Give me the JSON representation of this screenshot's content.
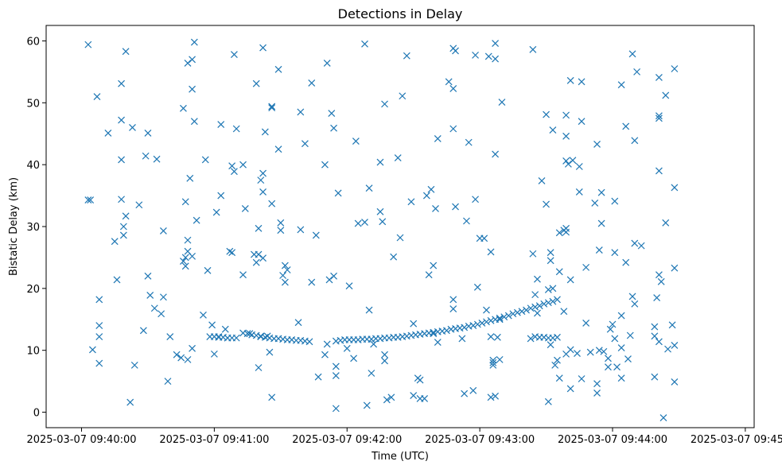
{
  "chart_data": {
    "type": "scatter",
    "title": "Detections in Delay",
    "xlabel": "Time (UTC)",
    "ylabel": "Bistatic Delay (km)",
    "marker": "x",
    "color": "#1f77b4",
    "x_unit": "seconds since 2025-03-07 09:40:00",
    "xlim": [
      -16,
      304
    ],
    "ylim": [
      -2.5,
      62.5
    ],
    "xticks": [
      0,
      60,
      120,
      180,
      240,
      300
    ],
    "xtick_labels": [
      "2025-03-07 09:40:00",
      "2025-03-07 09:41:00",
      "2025-03-07 09:42:00",
      "2025-03-07 09:43:00",
      "2025-03-07 09:44:00",
      "2025-03-07 09:45:00"
    ],
    "yticks": [
      0,
      10,
      20,
      30,
      40,
      50,
      60
    ],
    "ytick_labels": [
      "0",
      "10",
      "20",
      "30",
      "40",
      "50",
      "60"
    ],
    "grid": false,
    "track_points": [
      [
        58,
        12.2
      ],
      [
        60,
        12.2
      ],
      [
        62,
        12.1
      ],
      [
        64,
        12.1
      ],
      [
        66,
        12.0
      ],
      [
        68,
        12.0
      ],
      [
        73,
        12.8
      ],
      [
        75,
        12.7
      ],
      [
        77,
        12.5
      ],
      [
        79,
        12.4
      ],
      [
        81,
        12.3
      ],
      [
        83,
        12.1
      ],
      [
        85,
        12.0
      ],
      [
        87,
        11.9
      ],
      [
        89,
        11.9
      ],
      [
        91,
        11.8
      ],
      [
        93,
        11.7
      ],
      [
        95,
        11.7
      ],
      [
        97,
        11.6
      ],
      [
        99,
        11.6
      ],
      [
        101,
        11.5
      ],
      [
        103,
        11.4
      ],
      [
        115,
        11.5
      ],
      [
        117,
        11.6
      ],
      [
        119,
        11.7
      ],
      [
        121,
        11.7
      ],
      [
        123,
        11.7
      ],
      [
        125,
        11.7
      ],
      [
        127,
        11.8
      ],
      [
        129,
        11.8
      ],
      [
        131,
        11.8
      ],
      [
        133,
        11.9
      ],
      [
        135,
        11.9
      ],
      [
        137,
        12.0
      ],
      [
        139,
        12.0
      ],
      [
        141,
        12.1
      ],
      [
        143,
        12.1
      ],
      [
        145,
        12.2
      ],
      [
        147,
        12.3
      ],
      [
        149,
        12.4
      ],
      [
        151,
        12.5
      ],
      [
        153,
        12.6
      ],
      [
        155,
        12.7
      ],
      [
        157,
        12.8
      ],
      [
        159,
        12.9
      ],
      [
        161,
        13.0
      ],
      [
        163,
        13.1
      ],
      [
        165,
        13.2
      ],
      [
        167,
        13.4
      ],
      [
        169,
        13.5
      ],
      [
        171,
        13.6
      ],
      [
        173,
        13.7
      ],
      [
        175,
        13.9
      ],
      [
        177,
        14.0
      ],
      [
        179,
        14.2
      ],
      [
        181,
        14.4
      ],
      [
        183,
        14.6
      ],
      [
        185,
        14.8
      ],
      [
        187,
        15.0
      ],
      [
        189,
        15.2
      ],
      [
        191,
        15.4
      ],
      [
        193,
        15.6
      ],
      [
        195,
        15.9
      ],
      [
        197,
        16.1
      ],
      [
        199,
        16.3
      ],
      [
        201,
        16.5
      ],
      [
        203,
        16.8
      ],
      [
        205,
        17.0
      ],
      [
        207,
        17.2
      ],
      [
        209,
        17.5
      ],
      [
        211,
        17.7
      ],
      [
        213,
        17.9
      ],
      [
        215,
        18.2
      ],
      [
        205,
        12.2
      ],
      [
        207,
        12.1
      ],
      [
        209,
        12.1
      ],
      [
        211,
        12.0
      ],
      [
        213,
        12.0
      ],
      [
        215,
        12.1
      ]
    ],
    "scatter_points": [
      [
        3,
        34.3
      ],
      [
        4,
        34.3
      ],
      [
        3,
        59.4
      ],
      [
        5,
        10.1
      ],
      [
        7,
        51.0
      ],
      [
        8,
        14.0
      ],
      [
        8,
        18.2
      ],
      [
        8,
        12.2
      ],
      [
        8,
        7.9
      ],
      [
        12,
        45.1
      ],
      [
        15,
        27.6
      ],
      [
        16,
        21.4
      ],
      [
        18,
        53.1
      ],
      [
        18,
        47.2
      ],
      [
        18,
        40.8
      ],
      [
        18,
        34.4
      ],
      [
        19,
        30.0
      ],
      [
        19,
        28.6
      ],
      [
        20,
        31.7
      ],
      [
        20,
        58.3
      ],
      [
        22,
        1.6
      ],
      [
        23,
        46.0
      ],
      [
        24,
        7.6
      ],
      [
        26,
        33.5
      ],
      [
        28,
        13.2
      ],
      [
        29,
        41.4
      ],
      [
        30,
        45.1
      ],
      [
        30,
        22.0
      ],
      [
        31,
        18.9
      ],
      [
        33,
        16.8
      ],
      [
        34,
        40.9
      ],
      [
        36,
        15.9
      ],
      [
        37,
        29.3
      ],
      [
        37,
        18.6
      ],
      [
        39,
        5.0
      ],
      [
        40,
        12.2
      ],
      [
        43,
        9.3
      ],
      [
        45,
        8.8
      ],
      [
        46,
        49.1
      ],
      [
        47,
        25.0
      ],
      [
        48,
        26.0
      ],
      [
        46,
        24.4
      ],
      [
        47,
        23.6
      ],
      [
        48,
        27.8
      ],
      [
        47,
        34.0
      ],
      [
        48,
        56.4
      ],
      [
        48,
        8.5
      ],
      [
        49,
        37.8
      ],
      [
        50,
        57.0
      ],
      [
        50,
        52.2
      ],
      [
        50,
        25.2
      ],
      [
        50,
        10.3
      ],
      [
        51,
        59.8
      ],
      [
        51,
        47.0
      ],
      [
        52,
        31.0
      ],
      [
        55,
        15.7
      ],
      [
        56,
        40.8
      ],
      [
        57,
        22.9
      ],
      [
        59,
        14.1
      ],
      [
        60,
        9.4
      ],
      [
        61,
        32.3
      ],
      [
        62,
        12.2
      ],
      [
        63,
        35.0
      ],
      [
        63,
        46.5
      ],
      [
        65,
        13.4
      ],
      [
        66,
        12.0
      ],
      [
        67,
        26.0
      ],
      [
        68,
        25.8
      ],
      [
        68,
        39.8
      ],
      [
        69,
        38.9
      ],
      [
        69,
        57.8
      ],
      [
        70,
        45.8
      ],
      [
        70,
        12.0
      ],
      [
        73,
        40.0
      ],
      [
        73,
        22.2
      ],
      [
        74,
        32.9
      ],
      [
        76,
        12.7
      ],
      [
        78,
        25.5
      ],
      [
        79,
        24.2
      ],
      [
        79,
        53.1
      ],
      [
        80,
        7.2
      ],
      [
        80,
        25.5
      ],
      [
        80,
        29.7
      ],
      [
        81,
        12.2
      ],
      [
        81,
        37.5
      ],
      [
        82,
        38.6
      ],
      [
        82,
        35.6
      ],
      [
        82,
        24.9
      ],
      [
        82,
        58.9
      ],
      [
        83,
        45.3
      ],
      [
        84,
        12.3
      ],
      [
        85,
        9.7
      ],
      [
        86,
        33.7
      ],
      [
        86,
        49.4
      ],
      [
        86,
        49.2
      ],
      [
        86,
        2.4
      ],
      [
        89,
        55.4
      ],
      [
        89,
        42.5
      ],
      [
        90,
        30.6
      ],
      [
        90,
        29.4
      ],
      [
        91,
        22.1
      ],
      [
        92,
        21.0
      ],
      [
        92,
        23.7
      ],
      [
        93,
        23.0
      ],
      [
        98,
        14.5
      ],
      [
        99,
        48.5
      ],
      [
        99,
        29.5
      ],
      [
        101,
        43.4
      ],
      [
        104,
        21.0
      ],
      [
        104,
        53.2
      ],
      [
        106,
        28.6
      ],
      [
        107,
        5.7
      ],
      [
        110,
        40.0
      ],
      [
        110,
        9.3
      ],
      [
        111,
        11.0
      ],
      [
        111,
        56.4
      ],
      [
        112,
        21.4
      ],
      [
        113,
        48.3
      ],
      [
        114,
        22.0
      ],
      [
        114,
        45.9
      ],
      [
        115,
        0.6
      ],
      [
        115,
        7.4
      ],
      [
        115,
        5.9
      ],
      [
        116,
        35.4
      ],
      [
        120,
        10.3
      ],
      [
        121,
        20.4
      ],
      [
        123,
        8.7
      ],
      [
        124,
        43.8
      ],
      [
        125,
        30.5
      ],
      [
        128,
        59.5
      ],
      [
        128,
        30.7
      ],
      [
        129,
        1.1
      ],
      [
        130,
        36.2
      ],
      [
        130,
        16.5
      ],
      [
        131,
        6.3
      ],
      [
        132,
        11.0
      ],
      [
        135,
        40.4
      ],
      [
        135,
        32.4
      ],
      [
        136,
        30.8
      ],
      [
        137,
        49.8
      ],
      [
        137,
        9.3
      ],
      [
        137,
        8.3
      ],
      [
        138,
        2.0
      ],
      [
        140,
        2.4
      ],
      [
        141,
        25.1
      ],
      [
        143,
        41.1
      ],
      [
        144,
        28.2
      ],
      [
        145,
        51.1
      ],
      [
        147,
        57.6
      ],
      [
        149,
        34.0
      ],
      [
        150,
        2.7
      ],
      [
        150,
        14.3
      ],
      [
        152,
        5.5
      ],
      [
        153,
        5.2
      ],
      [
        153,
        2.2
      ],
      [
        155,
        2.2
      ],
      [
        156,
        35.0
      ],
      [
        157,
        22.2
      ],
      [
        158,
        36.0
      ],
      [
        159,
        23.7
      ],
      [
        159,
        12.7
      ],
      [
        160,
        32.9
      ],
      [
        161,
        11.3
      ],
      [
        161,
        44.2
      ],
      [
        166,
        53.4
      ],
      [
        168,
        52.3
      ],
      [
        168,
        58.8
      ],
      [
        168,
        45.8
      ],
      [
        168,
        18.2
      ],
      [
        168,
        16.7
      ],
      [
        169,
        58.4
      ],
      [
        169,
        33.2
      ],
      [
        172,
        11.9
      ],
      [
        173,
        3.0
      ],
      [
        174,
        30.9
      ],
      [
        175,
        43.6
      ],
      [
        177,
        3.5
      ],
      [
        178,
        57.7
      ],
      [
        178,
        34.4
      ],
      [
        179,
        20.2
      ],
      [
        180,
        28.1
      ],
      [
        182,
        28.1
      ],
      [
        183,
        16.5
      ],
      [
        184,
        57.5
      ],
      [
        185,
        25.9
      ],
      [
        185,
        12.2
      ],
      [
        185,
        2.4
      ],
      [
        186,
        8.4
      ],
      [
        186,
        7.6
      ],
      [
        186,
        8.0
      ],
      [
        187,
        2.6
      ],
      [
        187,
        57.1
      ],
      [
        187,
        41.7
      ],
      [
        187,
        59.6
      ],
      [
        188,
        12.1
      ],
      [
        189,
        15.0
      ],
      [
        189,
        8.5
      ],
      [
        190,
        50.1
      ],
      [
        203,
        11.9
      ],
      [
        204,
        58.6
      ],
      [
        204,
        25.6
      ],
      [
        205,
        19.0
      ],
      [
        206,
        21.5
      ],
      [
        206,
        16.0
      ],
      [
        208,
        37.4
      ],
      [
        210,
        48.1
      ],
      [
        210,
        33.6
      ],
      [
        211,
        1.7
      ],
      [
        211,
        19.8
      ],
      [
        212,
        25.8
      ],
      [
        212,
        24.5
      ],
      [
        212,
        10.9
      ],
      [
        213,
        20.0
      ],
      [
        213,
        45.6
      ],
      [
        214,
        7.6
      ],
      [
        215,
        8.4
      ],
      [
        216,
        5.5
      ],
      [
        216,
        22.7
      ],
      [
        216,
        29.0
      ],
      [
        218,
        16.3
      ],
      [
        218,
        29.4
      ],
      [
        219,
        29.7
      ],
      [
        219,
        48.0
      ],
      [
        219,
        44.6
      ],
      [
        219,
        40.6
      ],
      [
        219,
        29.1
      ],
      [
        219,
        9.4
      ],
      [
        220,
        40.1
      ],
      [
        221,
        53.6
      ],
      [
        221,
        21.4
      ],
      [
        221,
        3.8
      ],
      [
        221,
        10.1
      ],
      [
        222,
        40.7
      ],
      [
        224,
        9.5
      ],
      [
        225,
        39.7
      ],
      [
        225,
        35.6
      ],
      [
        226,
        53.4
      ],
      [
        226,
        47.0
      ],
      [
        226,
        5.4
      ],
      [
        228,
        23.4
      ],
      [
        228,
        14.4
      ],
      [
        230,
        9.7
      ],
      [
        232,
        33.8
      ],
      [
        233,
        43.3
      ],
      [
        233,
        4.6
      ],
      [
        233,
        3.1
      ],
      [
        234,
        26.2
      ],
      [
        234,
        10.0
      ],
      [
        235,
        30.5
      ],
      [
        235,
        35.5
      ],
      [
        236,
        9.8
      ],
      [
        238,
        8.7
      ],
      [
        238,
        7.3
      ],
      [
        239,
        13.4
      ],
      [
        240,
        14.2
      ],
      [
        241,
        25.8
      ],
      [
        241,
        34.1
      ],
      [
        241,
        11.9
      ],
      [
        242,
        7.3
      ],
      [
        244,
        5.5
      ],
      [
        244,
        10.4
      ],
      [
        244,
        52.9
      ],
      [
        244,
        15.6
      ],
      [
        246,
        24.2
      ],
      [
        246,
        46.2
      ],
      [
        247,
        8.6
      ],
      [
        248,
        12.4
      ],
      [
        249,
        57.9
      ],
      [
        249,
        18.7
      ],
      [
        250,
        27.3
      ],
      [
        250,
        17.5
      ],
      [
        250,
        43.9
      ],
      [
        251,
        55.0
      ],
      [
        253,
        26.9
      ],
      [
        259,
        5.7
      ],
      [
        259,
        13.8
      ],
      [
        259,
        12.3
      ],
      [
        260,
        18.5
      ],
      [
        261,
        54.1
      ],
      [
        261,
        47.9
      ],
      [
        261,
        47.5
      ],
      [
        261,
        22.2
      ],
      [
        261,
        39.0
      ],
      [
        261,
        11.4
      ],
      [
        262,
        21.1
      ],
      [
        264,
        30.6
      ],
      [
        264,
        51.2
      ],
      [
        265,
        10.2
      ],
      [
        267,
        14.1
      ],
      [
        268,
        23.3
      ],
      [
        268,
        36.3
      ],
      [
        268,
        55.5
      ],
      [
        268,
        10.8
      ],
      [
        268,
        4.9
      ],
      [
        263,
        -0.9
      ]
    ]
  }
}
